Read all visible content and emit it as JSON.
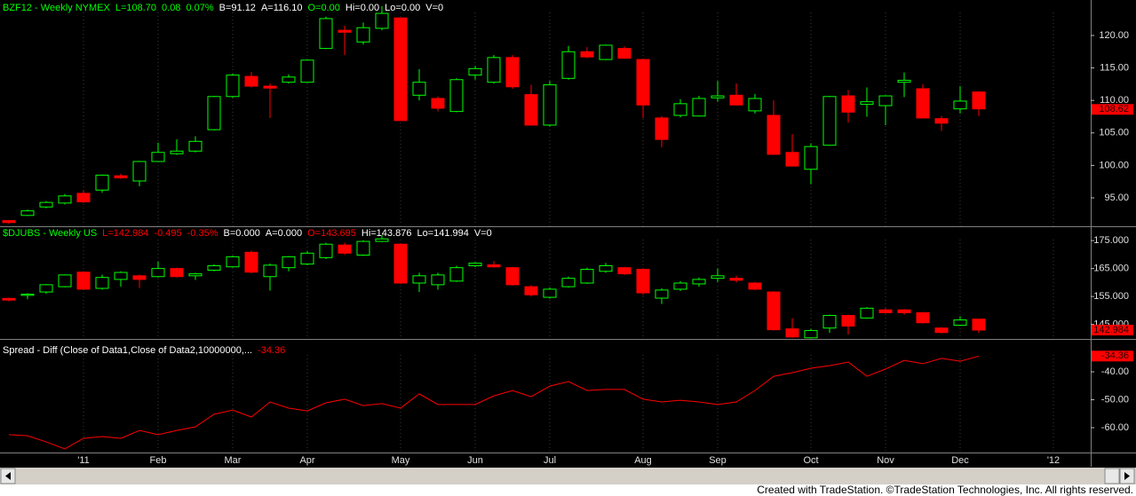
{
  "chart_data": [
    {
      "type": "candlestick",
      "header": [
        "BZF12 - Weekly  NYMEX",
        "L=108.70",
        "0.08",
        "0.07%",
        "B=91.12",
        "A=116.10",
        "O=0.00",
        "Hi=0.00",
        "Lo=0.00",
        "V=0"
      ],
      "header_colors": [
        "#00ff00",
        "#00ff00",
        "#00ff00",
        "#00ff00",
        "#ffffff",
        "#ffffff",
        "#00ff00",
        "#ffffff",
        "#ffffff",
        "#ffffff"
      ],
      "open": [
        91.5,
        92.3,
        93.6,
        94.2,
        95.7,
        96.2,
        98.4,
        97.6,
        100.6,
        101.8,
        102.2,
        105.5,
        110.6,
        113.7,
        112.2,
        112.8,
        112.8,
        118,
        120.8,
        119,
        121.1,
        122.7,
        110.8,
        110.3,
        108.3,
        113.9,
        112.8,
        116.6,
        110.9,
        106.2,
        113.4,
        117.5,
        116.3,
        118,
        116.3,
        107.3,
        107.7,
        107.6,
        110.4,
        110.8,
        108.4,
        107.7,
        102,
        99.4,
        103.1,
        110.7,
        109.4,
        109.2,
        112.8,
        111.8,
        107.2,
        108.7,
        111.3
      ],
      "high": [
        91.6,
        93.2,
        94.5,
        95.6,
        96.2,
        98.6,
        98.7,
        100.7,
        103.5,
        104,
        104.5,
        110.7,
        114.1,
        114.4,
        112.6,
        114,
        116.3,
        122.9,
        121.5,
        122,
        124.5,
        122.7,
        114.8,
        110.6,
        113.4,
        115.3,
        117,
        117,
        112.4,
        113,
        118.4,
        118.2,
        118.6,
        118.3,
        116.3,
        107.6,
        110.2,
        110.7,
        113,
        112.6,
        111,
        110,
        104.8,
        103.4,
        110.7,
        111.6,
        112,
        110.8,
        114.3,
        112.5,
        107.6,
        112.2,
        111.4
      ],
      "low": [
        91,
        92.2,
        93.4,
        94,
        94.2,
        95.8,
        97.9,
        96.8,
        100.6,
        101.6,
        102,
        105.4,
        110.4,
        112,
        107.3,
        112.6,
        112.7,
        117.9,
        117,
        118.6,
        120.8,
        106.9,
        110,
        108.3,
        108.2,
        113.2,
        112.6,
        111.8,
        106.2,
        106,
        113.2,
        116.5,
        116.2,
        116.4,
        107.3,
        102.8,
        107.4,
        107.5,
        109.8,
        109.2,
        108,
        101.6,
        99.8,
        97.1,
        103,
        106.6,
        107.5,
        106.2,
        110.5,
        107.2,
        105.3,
        108,
        107.6
      ],
      "close": [
        91.2,
        93,
        94.3,
        95.3,
        94.4,
        98.5,
        98.1,
        100.6,
        102,
        102.2,
        103.7,
        110.6,
        113.9,
        112.2,
        111.9,
        113.6,
        116.2,
        122.6,
        120.5,
        121.2,
        123.4,
        106.9,
        112.8,
        108.8,
        113.2,
        114.9,
        116.6,
        112.1,
        106.2,
        112.4,
        117.5,
        116.7,
        118.5,
        116.5,
        109.3,
        104,
        109.5,
        110.3,
        110.7,
        109.3,
        110.3,
        101.7,
        99.9,
        102.9,
        110.6,
        108.2,
        109.8,
        110.7,
        113.1,
        107.3,
        106.5,
        109.9,
        108.7
      ],
      "up_color": "#00ff00",
      "down_color": "#ff0000",
      "last_marker": 108.62,
      "ylim": [
        90.63,
        125.46
      ],
      "yticks": [
        {
          "value": 95,
          "label": "95.00"
        },
        {
          "value": 100,
          "label": "100.00"
        },
        {
          "value": 105,
          "label": "105.00"
        },
        {
          "value": 110,
          "label": "110.00"
        },
        {
          "value": 115,
          "label": "115.00"
        },
        {
          "value": 120,
          "label": "120.00"
        }
      ]
    },
    {
      "type": "candlestick",
      "header": [
        "$DJUBS - Weekly  US",
        "L=142.984",
        "-0.495",
        "-0.35%",
        "B=0.000",
        "A=0.000",
        "O=143.695",
        "Hi=143.876",
        "Lo=141.994",
        "V=0"
      ],
      "header_colors": [
        "#00ff00",
        "#ff0000",
        "#ff0000",
        "#ff0000",
        "#ffffff",
        "#ffffff",
        "#ff0000",
        "#ffffff",
        "#ffffff",
        "#ffffff"
      ],
      "open": [
        154.3,
        155.4,
        156.6,
        158.5,
        163.7,
        157.9,
        161.1,
        162.4,
        162.1,
        165,
        162.4,
        164.4,
        165.6,
        170.8,
        162.1,
        165.3,
        166.6,
        168.9,
        173.4,
        169.8,
        174.7,
        173.7,
        159.8,
        159.2,
        160.5,
        166,
        166.3,
        165.3,
        158.5,
        154.7,
        158.5,
        159.8,
        164,
        165.3,
        164.7,
        154.4,
        157.6,
        159.5,
        161.5,
        161.5,
        159.8,
        156.6,
        143.4,
        140.2,
        143.7,
        148.2,
        147.3,
        150.2,
        150.2,
        149.2,
        143.7,
        144.7,
        146.9
      ],
      "high": [
        154.6,
        156.2,
        159.4,
        162.9,
        164,
        162.8,
        164,
        162.8,
        167.4,
        165.3,
        163.5,
        166.5,
        169.6,
        171.4,
        166.8,
        169.5,
        171.2,
        174.2,
        174.2,
        175.1,
        177,
        174,
        163.5,
        163.5,
        166,
        167.3,
        167.7,
        165.6,
        159,
        158.2,
        162.1,
        165.3,
        167,
        165.6,
        165,
        157.9,
        160.5,
        161.8,
        165,
        162.4,
        160.2,
        156.9,
        147.2,
        143.4,
        148.5,
        148.5,
        151.2,
        150.8,
        150.5,
        149.5,
        144,
        147.9,
        147
      ],
      "low": [
        153.3,
        154,
        156,
        158.3,
        157.4,
        157.4,
        158.5,
        158,
        161.8,
        161.9,
        160.9,
        164,
        165.3,
        163.3,
        157.1,
        164,
        166.2,
        168.4,
        170,
        169.5,
        174.5,
        159.5,
        156.6,
        157.4,
        160.2,
        165.5,
        165.3,
        158.9,
        155,
        154.2,
        158.2,
        159.5,
        163.5,
        162.7,
        155.6,
        152.3,
        157,
        158.5,
        160.2,
        160,
        157.3,
        142.8,
        140.2,
        139.9,
        142,
        141.4,
        147,
        148.9,
        148.5,
        145.3,
        141.8,
        144.4,
        141.994
      ],
      "close": [
        153.7,
        155.8,
        159.2,
        162.7,
        157.6,
        161.8,
        163.6,
        161.1,
        165,
        162.1,
        163.1,
        166,
        169.2,
        163.7,
        166.2,
        169.2,
        170.5,
        173.7,
        170.5,
        174.7,
        175.6,
        159.8,
        162.4,
        162.7,
        165.3,
        166.9,
        165.6,
        159.2,
        155.6,
        157.6,
        161.5,
        164.7,
        166,
        163.1,
        156.3,
        157.3,
        159.8,
        161.1,
        162.4,
        160.8,
        157.6,
        143.1,
        140.5,
        142.8,
        148.2,
        144.4,
        150.8,
        149.2,
        149.2,
        145.6,
        142.1,
        146.6,
        142.984
      ],
      "up_color": "#00ff00",
      "down_color": "#ff0000",
      "ylim": [
        139.8,
        179.8
      ],
      "yticks": [
        {
          "value": 145,
          "label": "145.000"
        },
        {
          "value": 155,
          "label": "155.000"
        },
        {
          "value": 165,
          "label": "165.000"
        },
        {
          "value": 175,
          "label": "175.000"
        }
      ]
    },
    {
      "type": "line",
      "header": [
        "Spread - Diff (Close of Data1,Close of Data2,10000000,...",
        "-34.36"
      ],
      "header_colors": [
        "#ffffff",
        "#ff0000"
      ],
      "categories": [
        null,
        null,
        null,
        null,
        "'11",
        null,
        null,
        null,
        "Feb",
        null,
        null,
        null,
        "Mar",
        null,
        null,
        null,
        "Apr",
        null,
        null,
        null,
        null,
        "May",
        null,
        null,
        null,
        "Jun",
        null,
        null,
        null,
        "Jul",
        null,
        null,
        null,
        null,
        "Aug",
        null,
        null,
        null,
        "Sep",
        null,
        null,
        null,
        null,
        "Oct",
        null,
        null,
        null,
        "Nov",
        null,
        null,
        null,
        "Dec",
        null,
        null,
        null,
        null,
        "'12",
        null
      ],
      "values": [
        -62.5,
        -62.9,
        -65.1,
        -67.6,
        -63.8,
        -63.2,
        -63.8,
        -61.0,
        -62.5,
        -61.0,
        -59.7,
        -55.2,
        -53.7,
        -56.2,
        -50.8,
        -53.0,
        -54.0,
        -51.1,
        -49.8,
        -52.1,
        -51.4,
        -53.0,
        -47.9,
        -51.7,
        -51.7,
        -51.7,
        -48.6,
        -46.7,
        -48.9,
        -45.1,
        -43.5,
        -46.7,
        -46.3,
        -46.3,
        -49.8,
        -50.8,
        -50.2,
        -50.8,
        -51.7,
        -50.8,
        -46.7,
        -41.6,
        -40.3,
        -38.7,
        -37.8,
        -36.5,
        -41.6,
        -39.0,
        -35.9,
        -37.1,
        -35.2,
        -36.2,
        -34.36,
        null,
        null,
        null,
        null,
        null
      ],
      "color": "#ff0000",
      "ylim": [
        -68.9,
        -29.5
      ],
      "yticks": [
        {
          "value": -60,
          "label": "-60.00"
        },
        {
          "value": -50,
          "label": "-50.00"
        },
        {
          "value": -40,
          "label": "-40.00"
        }
      ]
    }
  ],
  "footer": "Created with TradeStation. ©TradeStation Technologies, Inc. All rights reserved."
}
